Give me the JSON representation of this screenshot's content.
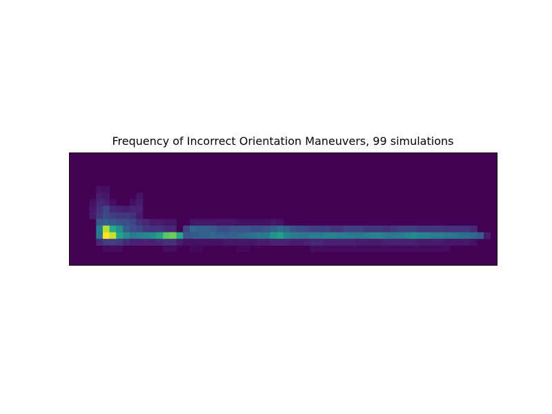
{
  "chart_data": {
    "type": "heatmap",
    "title": "Frequency of Incorrect Orientation Maneuvers, 99 simulations",
    "xlabel": "",
    "ylabel": "",
    "axes_ticks": "none",
    "colormap": "viridis",
    "grid": false,
    "n_rows": 17,
    "n_cols": 64,
    "background_value": 0,
    "vmax": 1.0,
    "cells": [
      [
        4,
        5,
        0.06
      ],
      [
        5,
        5,
        0.05
      ],
      [
        4,
        6,
        0.1
      ],
      [
        5,
        6,
        0.08
      ],
      [
        10,
        6,
        0.07
      ],
      [
        3,
        7,
        0.06
      ],
      [
        4,
        7,
        0.14
      ],
      [
        5,
        7,
        0.12
      ],
      [
        6,
        7,
        0.05
      ],
      [
        9,
        7,
        0.06
      ],
      [
        10,
        7,
        0.1
      ],
      [
        3,
        8,
        0.08
      ],
      [
        4,
        8,
        0.16
      ],
      [
        5,
        8,
        0.22
      ],
      [
        6,
        8,
        0.14
      ],
      [
        7,
        8,
        0.12
      ],
      [
        8,
        8,
        0.1
      ],
      [
        9,
        8,
        0.12
      ],
      [
        10,
        8,
        0.12
      ],
      [
        3,
        9,
        0.1
      ],
      [
        4,
        9,
        0.18
      ],
      [
        5,
        9,
        0.22
      ],
      [
        6,
        9,
        0.2
      ],
      [
        7,
        9,
        0.18
      ],
      [
        8,
        9,
        0.18
      ],
      [
        9,
        9,
        0.16
      ],
      [
        10,
        9,
        0.1
      ],
      [
        4,
        10,
        0.28
      ],
      [
        5,
        10,
        0.3
      ],
      [
        6,
        10,
        0.28
      ],
      [
        7,
        10,
        0.26
      ],
      [
        8,
        10,
        0.24
      ],
      [
        9,
        10,
        0.22
      ],
      [
        10,
        10,
        0.16
      ],
      [
        11,
        10,
        0.14
      ],
      [
        12,
        10,
        0.1
      ],
      [
        13,
        10,
        0.1
      ],
      [
        14,
        10,
        0.08
      ],
      [
        15,
        10,
        0.08
      ],
      [
        18,
        10,
        0.08
      ],
      [
        19,
        10,
        0.08
      ],
      [
        20,
        10,
        0.08
      ],
      [
        21,
        10,
        0.08
      ],
      [
        22,
        10,
        0.08
      ],
      [
        23,
        10,
        0.08
      ],
      [
        24,
        10,
        0.08
      ],
      [
        25,
        10,
        0.06
      ],
      [
        26,
        10,
        0.06
      ],
      [
        27,
        10,
        0.06
      ],
      [
        28,
        10,
        0.06
      ],
      [
        29,
        10,
        0.06
      ],
      [
        30,
        10,
        0.08
      ],
      [
        31,
        10,
        0.06
      ],
      [
        4,
        11,
        0.42
      ],
      [
        5,
        11,
        0.9
      ],
      [
        6,
        11,
        0.62
      ],
      [
        7,
        11,
        0.5
      ],
      [
        8,
        11,
        0.3
      ],
      [
        9,
        11,
        0.24
      ],
      [
        10,
        11,
        0.22
      ],
      [
        11,
        11,
        0.18
      ],
      [
        12,
        11,
        0.16
      ],
      [
        13,
        11,
        0.16
      ],
      [
        14,
        11,
        0.14
      ],
      [
        15,
        11,
        0.14
      ],
      [
        17,
        11,
        0.22
      ],
      [
        18,
        11,
        0.34
      ],
      [
        19,
        11,
        0.32
      ],
      [
        20,
        11,
        0.3
      ],
      [
        21,
        11,
        0.28
      ],
      [
        22,
        11,
        0.24
      ],
      [
        23,
        11,
        0.24
      ],
      [
        24,
        11,
        0.26
      ],
      [
        25,
        11,
        0.26
      ],
      [
        26,
        11,
        0.26
      ],
      [
        27,
        11,
        0.24
      ],
      [
        28,
        11,
        0.24
      ],
      [
        29,
        11,
        0.26
      ],
      [
        30,
        11,
        0.3
      ],
      [
        31,
        11,
        0.36
      ],
      [
        32,
        11,
        0.32
      ],
      [
        33,
        11,
        0.26
      ],
      [
        34,
        11,
        0.24
      ],
      [
        35,
        11,
        0.22
      ],
      [
        36,
        11,
        0.2
      ],
      [
        37,
        11,
        0.2
      ],
      [
        38,
        11,
        0.2
      ],
      [
        39,
        11,
        0.18
      ],
      [
        40,
        11,
        0.18
      ],
      [
        41,
        11,
        0.2
      ],
      [
        42,
        11,
        0.2
      ],
      [
        43,
        11,
        0.2
      ],
      [
        44,
        11,
        0.18
      ],
      [
        45,
        11,
        0.18
      ],
      [
        46,
        11,
        0.18
      ],
      [
        47,
        11,
        0.16
      ],
      [
        48,
        11,
        0.18
      ],
      [
        49,
        11,
        0.2
      ],
      [
        50,
        11,
        0.2
      ],
      [
        51,
        11,
        0.2
      ],
      [
        52,
        11,
        0.18
      ],
      [
        53,
        11,
        0.18
      ],
      [
        54,
        11,
        0.18
      ],
      [
        55,
        11,
        0.18
      ],
      [
        56,
        11,
        0.16
      ],
      [
        57,
        11,
        0.16
      ],
      [
        58,
        11,
        0.16
      ],
      [
        59,
        11,
        0.16
      ],
      [
        60,
        11,
        0.14
      ],
      [
        4,
        12,
        0.4
      ],
      [
        5,
        12,
        1.0
      ],
      [
        6,
        12,
        0.92
      ],
      [
        7,
        12,
        0.58
      ],
      [
        8,
        12,
        0.48
      ],
      [
        9,
        12,
        0.4
      ],
      [
        10,
        12,
        0.44
      ],
      [
        11,
        12,
        0.46
      ],
      [
        12,
        12,
        0.5
      ],
      [
        13,
        12,
        0.58
      ],
      [
        14,
        12,
        0.74
      ],
      [
        15,
        12,
        0.78
      ],
      [
        16,
        12,
        0.6
      ],
      [
        17,
        12,
        0.26
      ],
      [
        18,
        12,
        0.28
      ],
      [
        19,
        12,
        0.3
      ],
      [
        20,
        12,
        0.32
      ],
      [
        21,
        12,
        0.34
      ],
      [
        22,
        12,
        0.32
      ],
      [
        23,
        12,
        0.3
      ],
      [
        24,
        12,
        0.32
      ],
      [
        25,
        12,
        0.34
      ],
      [
        26,
        12,
        0.36
      ],
      [
        27,
        12,
        0.38
      ],
      [
        28,
        12,
        0.4
      ],
      [
        29,
        12,
        0.42
      ],
      [
        30,
        12,
        0.52
      ],
      [
        31,
        12,
        0.56
      ],
      [
        32,
        12,
        0.46
      ],
      [
        33,
        12,
        0.42
      ],
      [
        34,
        12,
        0.4
      ],
      [
        35,
        12,
        0.4
      ],
      [
        36,
        12,
        0.42
      ],
      [
        37,
        12,
        0.42
      ],
      [
        38,
        12,
        0.44
      ],
      [
        39,
        12,
        0.44
      ],
      [
        40,
        12,
        0.42
      ],
      [
        41,
        12,
        0.42
      ],
      [
        42,
        12,
        0.4
      ],
      [
        43,
        12,
        0.4
      ],
      [
        44,
        12,
        0.42
      ],
      [
        45,
        12,
        0.44
      ],
      [
        46,
        12,
        0.44
      ],
      [
        47,
        12,
        0.42
      ],
      [
        48,
        12,
        0.4
      ],
      [
        49,
        12,
        0.42
      ],
      [
        50,
        12,
        0.46
      ],
      [
        51,
        12,
        0.48
      ],
      [
        52,
        12,
        0.46
      ],
      [
        53,
        12,
        0.44
      ],
      [
        54,
        12,
        0.42
      ],
      [
        55,
        12,
        0.42
      ],
      [
        56,
        12,
        0.4
      ],
      [
        57,
        12,
        0.4
      ],
      [
        58,
        12,
        0.38
      ],
      [
        59,
        12,
        0.36
      ],
      [
        60,
        12,
        0.34
      ],
      [
        61,
        12,
        0.3
      ],
      [
        62,
        12,
        0.1
      ],
      [
        4,
        13,
        0.14
      ],
      [
        5,
        13,
        0.2
      ],
      [
        6,
        13,
        0.2
      ],
      [
        7,
        13,
        0.18
      ],
      [
        8,
        13,
        0.14
      ],
      [
        9,
        13,
        0.12
      ],
      [
        10,
        13,
        0.12
      ],
      [
        11,
        13,
        0.12
      ],
      [
        12,
        13,
        0.12
      ],
      [
        13,
        13,
        0.14
      ],
      [
        14,
        13,
        0.16
      ],
      [
        15,
        13,
        0.16
      ],
      [
        16,
        13,
        0.1
      ],
      [
        17,
        13,
        0.06
      ],
      [
        18,
        13,
        0.06
      ],
      [
        19,
        13,
        0.06
      ],
      [
        20,
        13,
        0.06
      ],
      [
        21,
        13,
        0.06
      ],
      [
        22,
        13,
        0.06
      ],
      [
        23,
        13,
        0.08
      ],
      [
        24,
        13,
        0.08
      ],
      [
        25,
        13,
        0.08
      ],
      [
        26,
        13,
        0.08
      ],
      [
        27,
        13,
        0.08
      ],
      [
        28,
        13,
        0.1
      ],
      [
        29,
        13,
        0.1
      ],
      [
        30,
        13,
        0.12
      ],
      [
        31,
        13,
        0.12
      ],
      [
        32,
        13,
        0.12
      ],
      [
        33,
        13,
        0.1
      ],
      [
        34,
        13,
        0.1
      ],
      [
        35,
        13,
        0.12
      ],
      [
        36,
        13,
        0.14
      ],
      [
        37,
        13,
        0.14
      ],
      [
        38,
        13,
        0.12
      ],
      [
        39,
        13,
        0.12
      ],
      [
        40,
        13,
        0.12
      ],
      [
        41,
        13,
        0.12
      ],
      [
        42,
        13,
        0.12
      ],
      [
        43,
        13,
        0.1
      ],
      [
        44,
        13,
        0.1
      ],
      [
        45,
        13,
        0.1
      ],
      [
        46,
        13,
        0.1
      ],
      [
        47,
        13,
        0.12
      ],
      [
        48,
        13,
        0.12
      ],
      [
        49,
        13,
        0.12
      ],
      [
        50,
        13,
        0.12
      ],
      [
        51,
        13,
        0.12
      ],
      [
        52,
        13,
        0.1
      ],
      [
        53,
        13,
        0.1
      ],
      [
        54,
        13,
        0.1
      ],
      [
        55,
        13,
        0.1
      ],
      [
        56,
        13,
        0.08
      ],
      [
        57,
        13,
        0.08
      ],
      [
        58,
        13,
        0.08
      ],
      [
        59,
        13,
        0.08
      ],
      [
        60,
        13,
        0.06
      ],
      [
        5,
        14,
        0.04
      ],
      [
        6,
        14,
        0.04
      ],
      [
        7,
        14,
        0.04
      ],
      [
        14,
        14,
        0.04
      ],
      [
        15,
        14,
        0.04
      ],
      [
        18,
        14,
        0.03
      ],
      [
        19,
        14,
        0.03
      ],
      [
        25,
        14,
        0.03
      ],
      [
        26,
        14,
        0.03
      ],
      [
        36,
        14,
        0.04
      ],
      [
        37,
        14,
        0.04
      ],
      [
        38,
        14,
        0.04
      ],
      [
        39,
        14,
        0.04
      ],
      [
        40,
        14,
        0.04
      ],
      [
        41,
        14,
        0.04
      ],
      [
        42,
        14,
        0.04
      ],
      [
        43,
        14,
        0.04
      ],
      [
        44,
        14,
        0.04
      ],
      [
        45,
        14,
        0.04
      ],
      [
        46,
        14,
        0.04
      ],
      [
        47,
        14,
        0.04
      ],
      [
        48,
        14,
        0.04
      ],
      [
        49,
        14,
        0.04
      ],
      [
        50,
        14,
        0.04
      ],
      [
        51,
        14,
        0.04
      ],
      [
        52,
        14,
        0.04
      ],
      [
        53,
        14,
        0.04
      ],
      [
        54,
        14,
        0.04
      ],
      [
        55,
        14,
        0.04
      ],
      [
        56,
        14,
        0.04
      ]
    ]
  }
}
